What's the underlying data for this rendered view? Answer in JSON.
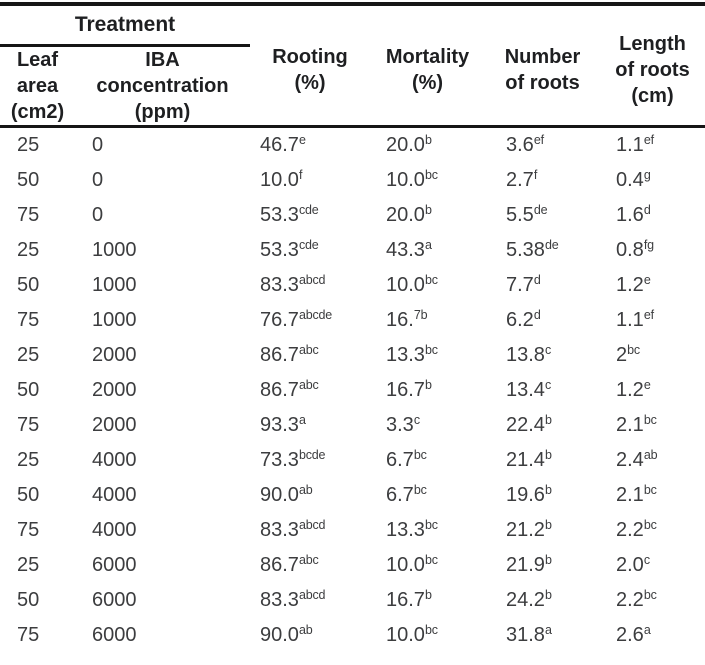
{
  "table": {
    "group_header": {
      "treatment": "Treatment"
    },
    "columns": [
      {
        "id": "leaf-area",
        "label": "Leaf\narea\n(cm2)"
      },
      {
        "id": "iba-concentration",
        "label": "IBA\nconcentration\n(ppm)"
      },
      {
        "id": "rooting",
        "label": "Rooting\n(%)"
      },
      {
        "id": "mortality",
        "label": "Mortality\n(%)"
      },
      {
        "id": "number-of-roots",
        "label": "Number\nof roots"
      },
      {
        "id": "length-of-roots",
        "label": "Length\nof roots\n(cm)"
      }
    ],
    "rows": [
      {
        "cells": [
          {
            "v": "25"
          },
          {
            "v": "0"
          },
          {
            "v": "46.7",
            "s": "e"
          },
          {
            "v": "20.0",
            "s": "b"
          },
          {
            "v": "3.6",
            "s": "ef"
          },
          {
            "v": "1.1",
            "s": "ef"
          }
        ]
      },
      {
        "cells": [
          {
            "v": "50"
          },
          {
            "v": "0"
          },
          {
            "v": "10.0",
            "s": "f"
          },
          {
            "v": "10.0",
            "s": "bc"
          },
          {
            "v": "2.7",
            "s": "f"
          },
          {
            "v": "0.4",
            "s": "g"
          }
        ]
      },
      {
        "cells": [
          {
            "v": "75"
          },
          {
            "v": "0"
          },
          {
            "v": "53.3",
            "s": "cde"
          },
          {
            "v": "20.0",
            "s": "b"
          },
          {
            "v": "5.5",
            "s": "de"
          },
          {
            "v": "1.6",
            "s": "d"
          }
        ]
      },
      {
        "cells": [
          {
            "v": "25"
          },
          {
            "v": "1000"
          },
          {
            "v": "53.3",
            "s": "cde"
          },
          {
            "v": "43.3",
            "s": "a"
          },
          {
            "v": "5.38",
            "s": "de"
          },
          {
            "v": "0.8",
            "s": "fg"
          }
        ]
      },
      {
        "cells": [
          {
            "v": "50"
          },
          {
            "v": "1000"
          },
          {
            "v": "83.3",
            "s": "abcd"
          },
          {
            "v": "10.0",
            "s": "bc"
          },
          {
            "v": "7.7",
            "s": "d"
          },
          {
            "v": "1.2",
            "s": "e"
          }
        ]
      },
      {
        "cells": [
          {
            "v": "75"
          },
          {
            "v": "1000"
          },
          {
            "v": "76.7",
            "s": "abcde"
          },
          {
            "v": "16.",
            "s": "7b"
          },
          {
            "v": "6.2",
            "s": "d"
          },
          {
            "v": "1.1",
            "s": "ef"
          }
        ]
      },
      {
        "cells": [
          {
            "v": "25"
          },
          {
            "v": "2000"
          },
          {
            "v": "86.7",
            "s": "abc"
          },
          {
            "v": "13.3",
            "s": "bc"
          },
          {
            "v": "13.8",
            "s": "c"
          },
          {
            "v": "2",
            "s": "bc"
          }
        ]
      },
      {
        "cells": [
          {
            "v": "50"
          },
          {
            "v": "2000"
          },
          {
            "v": "86.7",
            "s": "abc"
          },
          {
            "v": "16.7",
            "s": "b"
          },
          {
            "v": "13.4",
            "s": "c"
          },
          {
            "v": "1.2",
            "s": "e"
          }
        ]
      },
      {
        "cells": [
          {
            "v": "75"
          },
          {
            "v": "2000"
          },
          {
            "v": "93.3",
            "s": "a"
          },
          {
            "v": "3.3",
            "s": "c"
          },
          {
            "v": "22.4",
            "s": "b"
          },
          {
            "v": "2.1",
            "s": "bc"
          }
        ]
      },
      {
        "cells": [
          {
            "v": "25"
          },
          {
            "v": "4000"
          },
          {
            "v": "73.3",
            "s": "bcde"
          },
          {
            "v": "6.7",
            "s": "bc"
          },
          {
            "v": "21.4",
            "s": "b"
          },
          {
            "v": "2.4",
            "s": "ab"
          }
        ]
      },
      {
        "cells": [
          {
            "v": "50"
          },
          {
            "v": "4000"
          },
          {
            "v": "90.0",
            "s": "ab"
          },
          {
            "v": "6.7",
            "s": "bc"
          },
          {
            "v": "19.6",
            "s": "b"
          },
          {
            "v": "2.1",
            "s": "bc"
          }
        ]
      },
      {
        "cells": [
          {
            "v": "75"
          },
          {
            "v": "4000"
          },
          {
            "v": "83.3",
            "s": "abcd"
          },
          {
            "v": "13.3",
            "s": "bc"
          },
          {
            "v": "21.2",
            "s": "b"
          },
          {
            "v": "2.2",
            "s": "bc"
          }
        ]
      },
      {
        "cells": [
          {
            "v": "25"
          },
          {
            "v": "6000"
          },
          {
            "v": "86.7",
            "s": "abc"
          },
          {
            "v": "10.0",
            "s": "bc"
          },
          {
            "v": "21.9",
            "s": "b"
          },
          {
            "v": "2.0",
            "s": "c"
          }
        ]
      },
      {
        "cells": [
          {
            "v": "50"
          },
          {
            "v": "6000"
          },
          {
            "v": "83.3",
            "s": "abcd"
          },
          {
            "v": "16.7",
            "s": "b"
          },
          {
            "v": "24.2",
            "s": "b"
          },
          {
            "v": "2.2",
            "s": "bc"
          }
        ]
      },
      {
        "cells": [
          {
            "v": "75"
          },
          {
            "v": "6000"
          },
          {
            "v": "90.0",
            "s": "ab"
          },
          {
            "v": "10.0",
            "s": "bc"
          },
          {
            "v": "31.8",
            "s": "a"
          },
          {
            "v": "2.6",
            "s": "a"
          }
        ]
      }
    ]
  },
  "colors": {
    "rule": "#161616",
    "header_text": "#1e1f21",
    "body_text": "#3c3d3f",
    "background": "#ffffff"
  }
}
